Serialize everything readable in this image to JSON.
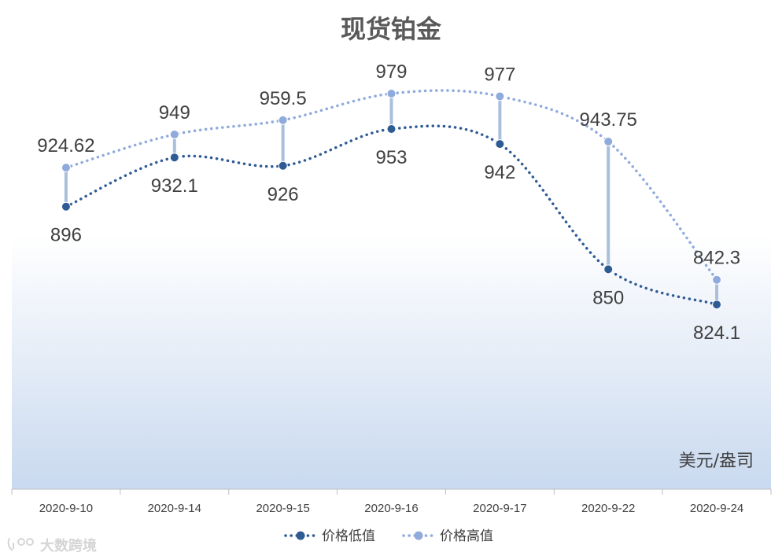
{
  "chart_data": {
    "type": "line",
    "title": "现货铂金",
    "unit_label": "美元/盎司",
    "categories": [
      "2020-9-10",
      "2020-9-14",
      "2020-9-15",
      "2020-9-16",
      "2020-9-17",
      "2020-9-22",
      "2020-9-24"
    ],
    "series": [
      {
        "name": "价格低值",
        "values": [
          896,
          932.1,
          926,
          953,
          942,
          850,
          824.1
        ],
        "labels": [
          "896",
          "932.1",
          "926",
          "953",
          "942",
          "850",
          "824.1"
        ],
        "color": "#2f5b95"
      },
      {
        "name": "价格高值",
        "values": [
          924.62,
          949,
          959.5,
          979,
          977,
          943.75,
          842.3
        ],
        "labels": [
          "924.62",
          "949",
          "959.5",
          "979",
          "977",
          "943.75",
          "842.3"
        ],
        "color": "#8faadc"
      }
    ],
    "drop_line_color": "#a9bfdc",
    "plot_gradient": [
      "#ffffff",
      "#c9d9ef"
    ],
    "legend_position": "bottom",
    "grid": false,
    "line_style": "dotted-smooth"
  },
  "watermark": "大数跨境"
}
